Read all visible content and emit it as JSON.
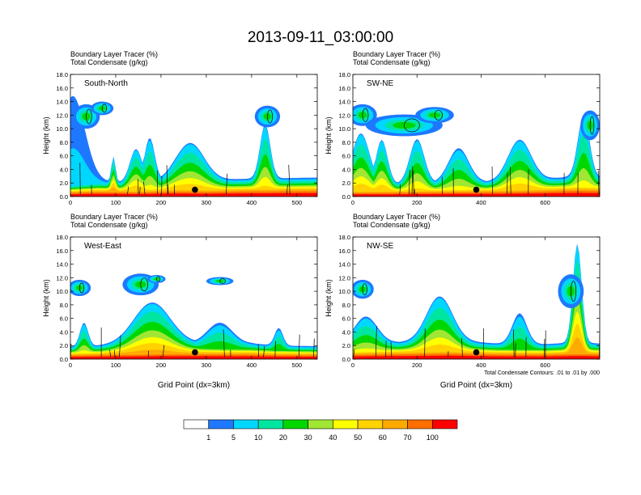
{
  "title": "2013-09-11_03:00:00",
  "colors": {
    "scale": [
      "#ffffff",
      "#1e78ff",
      "#00d7ff",
      "#00e6a0",
      "#00d700",
      "#a0e632",
      "#ffff00",
      "#ffd200",
      "#ffaa00",
      "#ff6e00",
      "#ff0000"
    ]
  },
  "chart_data": [
    {
      "type": "heatmap",
      "header": [
        "Boundary Layer Tracer   (%)",
        "Total Condensate   (g/kg)"
      ],
      "label": "South-North",
      "ylabel": "Height (km)",
      "xlabel": "",
      "xlim": [
        0,
        545
      ],
      "xticks": [
        0,
        100,
        200,
        300,
        400,
        500
      ],
      "ylim": [
        0,
        18
      ],
      "yticks": [
        "0.0",
        "2.0",
        "4.0",
        "6.0",
        "8.0",
        "10.0",
        "12.0",
        "14.0",
        "16.0",
        "18.0"
      ],
      "marker": [
        275,
        1.0
      ]
    },
    {
      "type": "heatmap",
      "header": [
        "Boundary Layer Tracer   (%)",
        "Total Condensate   (g/kg)"
      ],
      "label": "SW-NE",
      "ylabel": "Height (km)",
      "xlabel": "",
      "xlim": [
        0,
        770
      ],
      "xticks": [
        0,
        200,
        400,
        600
      ],
      "ylim": [
        0,
        18
      ],
      "yticks": [
        "0.0",
        "2.0",
        "4.0",
        "6.0",
        "8.0",
        "10.0",
        "12.0",
        "14.0",
        "16.0",
        "18.0"
      ],
      "marker": [
        385,
        1.0
      ]
    },
    {
      "type": "heatmap",
      "header": [
        "Boundary Layer Tracer   (%)",
        "Total Condensate   (g/kg)"
      ],
      "label": "West-East",
      "ylabel": "Height (km)",
      "xlabel": "Grid Point (dx=3km)",
      "xlim": [
        0,
        545
      ],
      "xticks": [
        0,
        100,
        200,
        300,
        400,
        500
      ],
      "ylim": [
        0,
        18
      ],
      "yticks": [
        "0.0",
        "2.0",
        "4.0",
        "6.0",
        "8.0",
        "10.0",
        "12.0",
        "14.0",
        "16.0",
        "18.0"
      ],
      "marker": [
        275,
        1.0
      ]
    },
    {
      "type": "heatmap",
      "header": [
        "Boundary Layer Tracer   (%)",
        "Total Condensate   (g/kg)"
      ],
      "label": "NW-SE",
      "ylabel": "Height (km)",
      "xlabel": "Grid Point (dx=3km)",
      "xlim": [
        0,
        770
      ],
      "xticks": [
        0,
        200,
        400,
        600
      ],
      "ylim": [
        0,
        18
      ],
      "yticks": [
        "0.0",
        "2.0",
        "4.0",
        "6.0",
        "8.0",
        "10.0",
        "12.0",
        "14.0",
        "16.0",
        "18.0"
      ],
      "marker": [
        385,
        1.0
      ],
      "footnote": "Total Condensate Contours: .01 to .01 by .000"
    }
  ],
  "colorbar": {
    "labels": [
      "1",
      "5",
      "10",
      "20",
      "30",
      "40",
      "50",
      "60",
      "70",
      "100"
    ]
  }
}
